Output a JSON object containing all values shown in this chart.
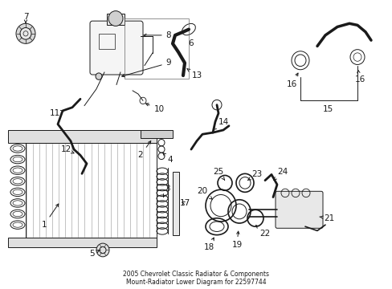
{
  "bg_color": "#ffffff",
  "line_color": "#1a1a1a",
  "fig_width": 4.89,
  "fig_height": 3.6,
  "dpi": 100,
  "title": "2005 Chevrolet Classic Radiator & Components\nMount-Radiator Lower Diagram for 22597744",
  "title_fontsize": 5.5,
  "label_fontsize": 7.5,
  "lw_thick": 2.0,
  "lw_med": 1.2,
  "lw_thin": 0.7
}
